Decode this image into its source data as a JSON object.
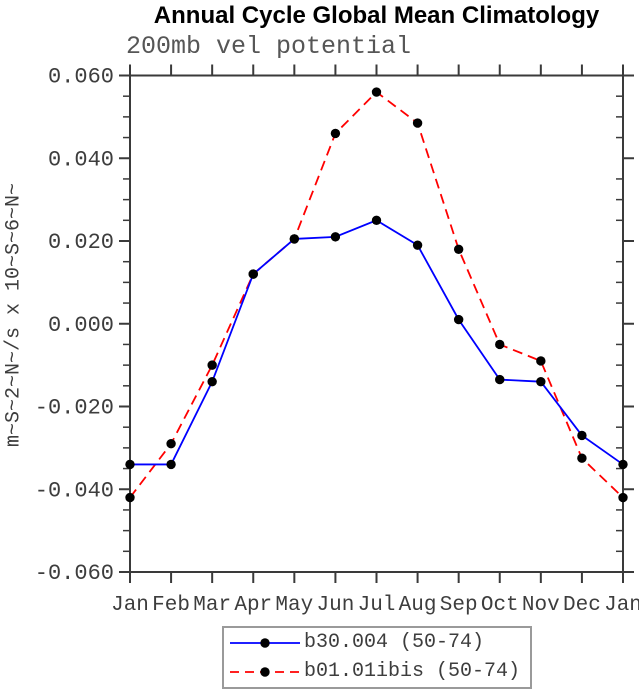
{
  "title": "Annual Cycle Global Mean Climatology",
  "subtitle": "200mb vel potential",
  "chart_data": {
    "type": "line",
    "x_categories": [
      "Jan",
      "Feb",
      "Mar",
      "Apr",
      "May",
      "Jun",
      "Jul",
      "Aug",
      "Sep",
      "Oct",
      "Nov",
      "Dec",
      "Jan"
    ],
    "y_tick_labels": [
      "0.060",
      "0.040",
      "0.020",
      "0.000",
      "-0.020",
      "-0.040",
      "-0.060"
    ],
    "ylim": [
      -0.06,
      0.06
    ],
    "y_major_step": 0.02,
    "y_minor_step": 0.005,
    "ylabel": "m~S~2~N~/s x 10~S~6~N~",
    "grid": false,
    "legend_position": "bottom-center",
    "marker": "filled-circle",
    "marker_color": "#000000",
    "series": [
      {
        "name": "b30.004 (50-74)",
        "color": "#0000ff",
        "line_style": "solid",
        "values": [
          -0.034,
          -0.034,
          -0.014,
          0.012,
          0.0205,
          0.021,
          0.025,
          0.019,
          0.001,
          -0.0135,
          -0.014,
          -0.027,
          -0.034
        ]
      },
      {
        "name": "b01.01ibis (50-74)",
        "color": "#ff0000",
        "line_style": "dashed",
        "values": [
          -0.042,
          -0.029,
          -0.01,
          0.012,
          0.0205,
          0.046,
          0.056,
          0.0485,
          0.018,
          -0.005,
          -0.009,
          -0.0325,
          -0.042
        ]
      }
    ]
  },
  "colors": {
    "frame": "#3a3a3a",
    "tick_label": "#3d3d3d",
    "subtitle_text": "#565656",
    "title_text": "#000000",
    "legend_border": "#9a9a9a",
    "background": "#ffffff"
  }
}
